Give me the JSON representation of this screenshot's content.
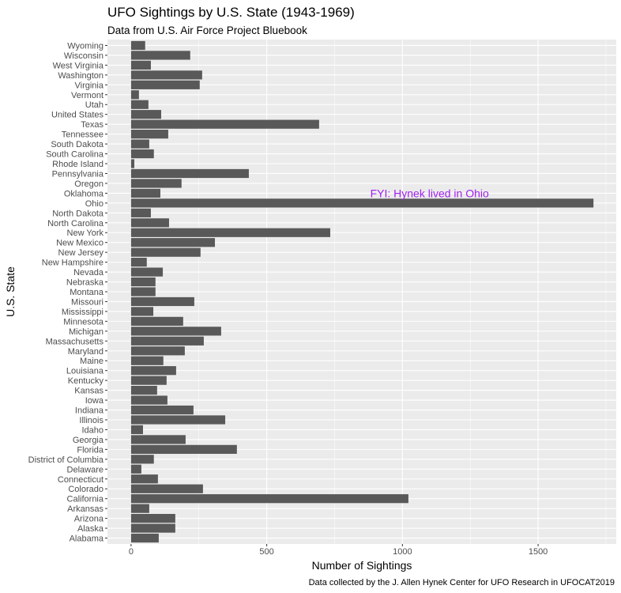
{
  "chart_data": {
    "type": "bar",
    "orientation": "horizontal",
    "title": "UFO Sightings by U.S. State (1943-1969)",
    "subtitle": "Data from U.S. Air Force Project Bluebook",
    "xlabel": "Number of Sightings",
    "ylabel": "U.S. State",
    "caption": "Data collected by the J. Allen Hynek Center for UFO Research in UFOCAT2019",
    "annotation": {
      "text": "FYI: Hynek lived in Ohio",
      "color": "#A020F0",
      "x": 1100,
      "y": "Oklahoma"
    },
    "xlim": [
      -87,
      1788
    ],
    "xticks": [
      0,
      500,
      1000,
      1500
    ],
    "grid": true,
    "bar_color": "#595959",
    "panel_color": "#EBEBEB",
    "categories": [
      "Alabama",
      "Alaska",
      "Arizona",
      "Arkansas",
      "California",
      "Colorado",
      "Connecticut",
      "Delaware",
      "District of Columbia",
      "Florida",
      "Georgia",
      "Idaho",
      "Illinois",
      "Indiana",
      "Iowa",
      "Kansas",
      "Kentucky",
      "Louisiana",
      "Maine",
      "Maryland",
      "Massachusetts",
      "Michigan",
      "Minnesota",
      "Mississippi",
      "Missouri",
      "Montana",
      "Nebraska",
      "Nevada",
      "New Hampshire",
      "New Jersey",
      "New Mexico",
      "New York",
      "North Carolina",
      "North Dakota",
      "Ohio",
      "Oklahoma",
      "Oregon",
      "Pennsylvania",
      "Rhode Island",
      "South Carolina",
      "South Dakota",
      "Tennessee",
      "Texas",
      "United States",
      "Utah",
      "Vermont",
      "Virginia",
      "Washington",
      "West Virginia",
      "Wisconsin",
      "Wyoming"
    ],
    "values": [
      102,
      163,
      163,
      67,
      1022,
      265,
      99,
      38,
      84,
      390,
      201,
      44,
      347,
      230,
      134,
      96,
      131,
      166,
      119,
      198,
      268,
      332,
      192,
      82,
      233,
      90,
      90,
      117,
      58,
      256,
      309,
      734,
      140,
      73,
      1704,
      108,
      186,
      434,
      12,
      84,
      67,
      137,
      693,
      111,
      64,
      29,
      253,
      262,
      73,
      218,
      52
    ]
  }
}
